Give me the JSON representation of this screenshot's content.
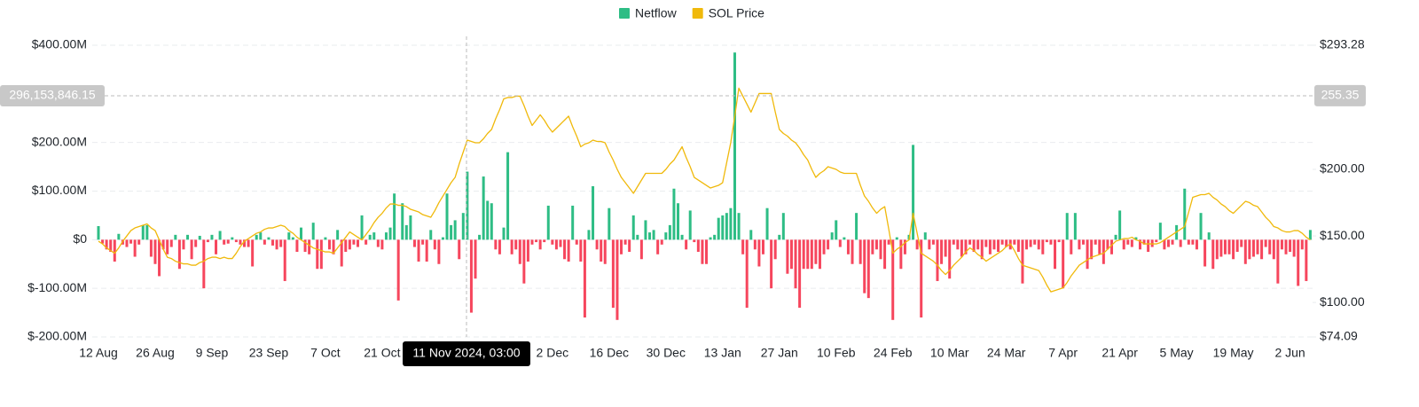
{
  "chart_data": {
    "type": "bar-line",
    "legend": "top",
    "grid": true,
    "categories": [
      "12 Aug",
      null,
      null,
      null,
      null,
      null,
      null,
      null,
      null,
      null,
      null,
      null,
      null,
      null,
      "26 Aug",
      null,
      null,
      null,
      null,
      null,
      null,
      null,
      null,
      null,
      null,
      null,
      null,
      null,
      "9 Sep",
      null,
      null,
      null,
      null,
      null,
      null,
      null,
      null,
      null,
      null,
      null,
      null,
      null,
      "23 Sep",
      null,
      null,
      null,
      null,
      null,
      null,
      null,
      null,
      null,
      null,
      null,
      null,
      null,
      "7 Oct",
      null,
      null,
      null,
      null,
      null,
      null,
      null,
      null,
      null,
      null,
      null,
      null,
      null,
      "21 Oct",
      null,
      null,
      null,
      null,
      null,
      null,
      null,
      null,
      null,
      null,
      null,
      null,
      null,
      null,
      null,
      null,
      null,
      null,
      null,
      null,
      null,
      null,
      null,
      null,
      null,
      null,
      null,
      null,
      null,
      null,
      null,
      null,
      null,
      null,
      null,
      null,
      null,
      null,
      null,
      null,
      null,
      "2 Dec",
      null,
      null,
      null,
      null,
      null,
      null,
      null,
      null,
      null,
      null,
      null,
      null,
      null,
      "16 Dec",
      null,
      null,
      null,
      null,
      null,
      null,
      null,
      null,
      null,
      null,
      null,
      null,
      null,
      "30 Dec",
      null,
      null,
      null,
      null,
      null,
      null,
      null,
      null,
      null,
      null,
      null,
      null,
      null,
      "13 Jan",
      null,
      null,
      null,
      null,
      null,
      null,
      null,
      null,
      null,
      null,
      null,
      null,
      null,
      "27 Jan",
      null,
      null,
      null,
      null,
      null,
      null,
      null,
      null,
      null,
      null,
      null,
      null,
      null,
      "10 Feb",
      null,
      null,
      null,
      null,
      null,
      null,
      null,
      null,
      null,
      null,
      null,
      null,
      null,
      "24 Feb",
      null,
      null,
      null,
      null,
      null,
      null,
      null,
      null,
      null,
      null,
      null,
      null,
      null,
      "10 Mar",
      null,
      null,
      null,
      null,
      null,
      null,
      null,
      null,
      null,
      null,
      null,
      null,
      null,
      "24 Mar",
      null,
      null,
      null,
      null,
      null,
      null,
      null,
      null,
      null,
      null,
      null,
      null,
      null,
      "7 Apr",
      null,
      null,
      null,
      null,
      null,
      null,
      null,
      null,
      null,
      null,
      null,
      null,
      null,
      "21 Apr",
      null,
      null,
      null,
      null,
      null,
      null,
      null,
      null,
      null,
      null,
      null,
      null,
      null,
      "5 May",
      null,
      null,
      null,
      null,
      null,
      null,
      null,
      null,
      null,
      null,
      null,
      null,
      null,
      "19 May",
      null,
      null,
      null,
      null,
      null,
      null,
      null,
      null,
      null,
      null,
      null,
      null,
      null,
      "2 Jun",
      null,
      null,
      null,
      null,
      null
    ],
    "series": [
      {
        "name": "Netflow",
        "type": "bar",
        "color": "#2ebd85",
        "negative_color": "#f6465d",
        "values": [
          28,
          -8,
          -20,
          -25,
          -45,
          12,
          -10,
          -15,
          -8,
          -35,
          -10,
          30,
          30,
          -35,
          -50,
          -75,
          -20,
          -30,
          -15,
          10,
          -60,
          -20,
          10,
          -40,
          -15,
          8,
          -100,
          -5,
          10,
          -30,
          18,
          -10,
          -8,
          5,
          -5,
          -10,
          -15,
          -15,
          -55,
          10,
          15,
          -10,
          5,
          -12,
          -20,
          -15,
          -85,
          15,
          5,
          -25,
          25,
          -25,
          -30,
          35,
          -60,
          -60,
          5,
          -20,
          -30,
          20,
          -55,
          -25,
          -20,
          -10,
          -15,
          50,
          -10,
          10,
          15,
          -15,
          -20,
          15,
          25,
          95,
          -125,
          75,
          30,
          50,
          -15,
          -45,
          -10,
          -45,
          20,
          -20,
          -50,
          5,
          95,
          30,
          40,
          -40,
          55,
          140,
          -150,
          -80,
          10,
          130,
          80,
          75,
          -20,
          -30,
          25,
          180,
          -30,
          -20,
          -50,
          -90,
          -45,
          -10,
          -5,
          -20,
          -5,
          70,
          -10,
          -20,
          -15,
          -40,
          -45,
          70,
          -10,
          -45,
          -160,
          20,
          110,
          -20,
          -45,
          -50,
          65,
          -140,
          -165,
          -30,
          -10,
          -25,
          50,
          10,
          -40,
          40,
          15,
          20,
          -30,
          -10,
          15,
          30,
          105,
          75,
          10,
          -20,
          60,
          -5,
          -25,
          -50,
          -50,
          5,
          10,
          45,
          50,
          55,
          65,
          385,
          55,
          -30,
          -140,
          20,
          -20,
          -55,
          -30,
          65,
          -100,
          -40,
          10,
          55,
          -70,
          -60,
          -100,
          -140,
          -60,
          -60,
          -60,
          -50,
          -60,
          -30,
          -20,
          15,
          40,
          -15,
          5,
          -30,
          -50,
          55,
          -50,
          -110,
          -120,
          -30,
          -20,
          -40,
          -60,
          -10,
          -165,
          5,
          -60,
          -30,
          10,
          195,
          -20,
          -160,
          15,
          -20,
          -10,
          -85,
          -50,
          -35,
          -80,
          -10,
          -20,
          -35,
          -30,
          -10,
          -25,
          -20,
          -40,
          -15,
          -30,
          -20,
          -25,
          -10,
          -15,
          -20,
          -10,
          -25,
          -90,
          -20,
          -15,
          -10,
          -20,
          -30,
          -5,
          -10,
          -60,
          -5,
          -100,
          55,
          -30,
          55,
          -20,
          -10,
          -60,
          -40,
          -10,
          -30,
          -50,
          -20,
          -30,
          10,
          60,
          -20,
          -10,
          -15,
          5,
          -20,
          -10,
          -25,
          -15,
          -5,
          35,
          -20,
          -15,
          -10,
          30,
          -15,
          105,
          -10,
          -10,
          -20,
          55,
          -55,
          15,
          -60,
          -40,
          -35,
          -30,
          -30,
          -40,
          -25,
          -15,
          -50,
          -40,
          -35,
          -30,
          -40,
          -15,
          -30,
          -40,
          -90,
          -20,
          -30,
          -25,
          -35,
          -95,
          -20,
          -85,
          20
        ]
      },
      {
        "name": "SOL Price",
        "type": "line",
        "axis": "y2",
        "color": "#f0b90b",
        "values": [
          146,
          144,
          141,
          139,
          137,
          141,
          146,
          150,
          154,
          156,
          157,
          158,
          159,
          156,
          154,
          147,
          140,
          134,
          133,
          131,
          130,
          129,
          129,
          128,
          128,
          130,
          131,
          133,
          134,
          134,
          133,
          134,
          133,
          133,
          137,
          142,
          146,
          148,
          150,
          152,
          153,
          155,
          156,
          156,
          157,
          158,
          157,
          154,
          152,
          149,
          147,
          145,
          143,
          141,
          140,
          139,
          138,
          138,
          137,
          141,
          145,
          149,
          153,
          151,
          149,
          147,
          151,
          155,
          160,
          164,
          167,
          171,
          174,
          174,
          173,
          173,
          172,
          170,
          169,
          168,
          166,
          165,
          164,
          169,
          175,
          180,
          185,
          190,
          194,
          204,
          213,
          222,
          221,
          220,
          220,
          223,
          227,
          230,
          238,
          245,
          253,
          254,
          254,
          255,
          255,
          248,
          240,
          233,
          237,
          241,
          237,
          232,
          228,
          231,
          234,
          237,
          240,
          232,
          225,
          217,
          219,
          220,
          222,
          221,
          221,
          220,
          213,
          207,
          200,
          194,
          190,
          186,
          182,
          187,
          192,
          197,
          197,
          197,
          197,
          197,
          200,
          204,
          207,
          212,
          217,
          209,
          202,
          194,
          192,
          190,
          188,
          186,
          187,
          188,
          190,
          205,
          220,
          240,
          261,
          255,
          249,
          243,
          250,
          257,
          257,
          257,
          257,
          243,
          230,
          227,
          225,
          222,
          220,
          216,
          211,
          207,
          200,
          194,
          197,
          199,
          202,
          201,
          200,
          198,
          197,
          197,
          197,
          197,
          188,
          180,
          176,
          171,
          167,
          170,
          172,
          155,
          137,
          140,
          142,
          145,
          147,
          167,
          152,
          137,
          135,
          133,
          131,
          128,
          124,
          121,
          124,
          128,
          131,
          134,
          138,
          141,
          139,
          136,
          134,
          131,
          133,
          135,
          137,
          139,
          142,
          144,
          139,
          133,
          128,
          127,
          126,
          125,
          124,
          119,
          113,
          108,
          109,
          110,
          111,
          115,
          120,
          124,
          128,
          130,
          132,
          134,
          135,
          136,
          137,
          140,
          143,
          146,
          147,
          148,
          148,
          149,
          147,
          146,
          144,
          144,
          144,
          144,
          145,
          147,
          149,
          151,
          153,
          155,
          157,
          168,
          179,
          180,
          181,
          181,
          182,
          179,
          177,
          174,
          172,
          169,
          167,
          170,
          173,
          176,
          175,
          173,
          172,
          168,
          164,
          161,
          157,
          156,
          154,
          153,
          153,
          154,
          154,
          152,
          149,
          147
        ]
      }
    ],
    "ylim": [
      -200,
      400
    ],
    "yticks": [
      {
        "value": -200,
        "label": "$-200.00M"
      },
      {
        "value": -100,
        "label": "$-100.00M"
      },
      {
        "value": 0,
        "label": "$0"
      },
      {
        "value": 100,
        "label": "$100.00M"
      },
      {
        "value": 200,
        "label": "$200.00M"
      },
      {
        "value": 400,
        "label": "$400.00M"
      }
    ],
    "y2lim": [
      74.09,
      293.28
    ],
    "y2ticks": [
      {
        "value": 74.09,
        "label": "$74.09"
      },
      {
        "value": 100,
        "label": "$100.00"
      },
      {
        "value": 150,
        "label": "$150.00"
      },
      {
        "value": 200,
        "label": "$200.00"
      },
      {
        "value": 293.28,
        "label": "$293.28"
      }
    ],
    "crosshair": {
      "x_label": "11 Nov 2024, 03:00",
      "y": {
        "value": 296.15384615,
        "label": "296,153,846.15"
      },
      "y2": {
        "value": 255.35,
        "label": "255.35"
      }
    }
  }
}
